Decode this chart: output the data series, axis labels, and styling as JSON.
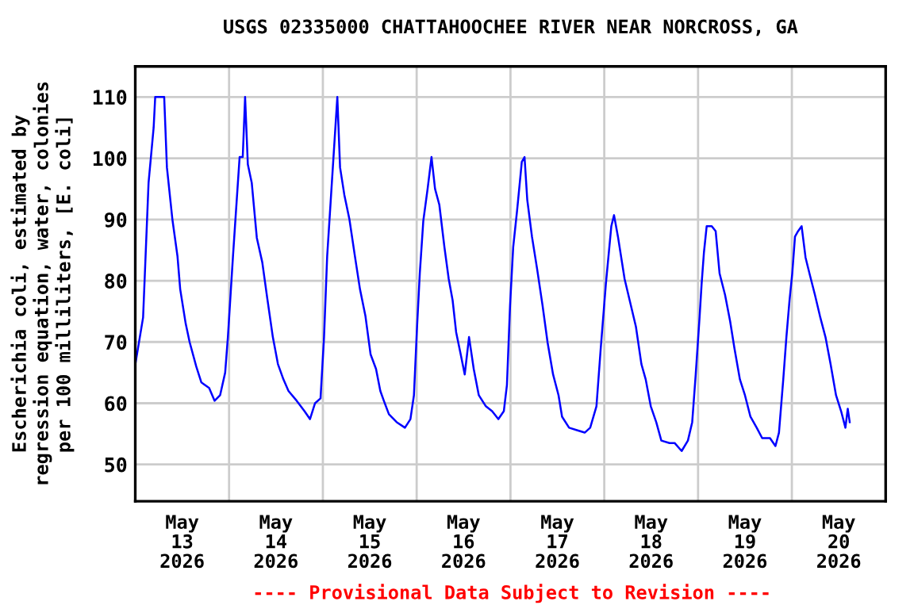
{
  "chart_data": {
    "type": "line",
    "title": "USGS 02335000 CHATTAHOOCHEE RIVER NEAR NORCROSS, GA",
    "ylabel": "Escherichia coli, estimated by\nregression equation, water, colonies\nper 100 milliliters, [E. coli]",
    "annotations": [
      "---- Provisional Data Subject to Revision ----"
    ],
    "xlim": [
      "2026-05-13T00:00",
      "2026-05-21T00:00"
    ],
    "xticks": [
      {
        "value": "2026-05-13T00:00",
        "label": null
      },
      {
        "value": "2026-05-13T12:00",
        "label": "May\n13\n2026"
      },
      {
        "value": "2026-05-14T00:00",
        "label": null
      },
      {
        "value": "2026-05-14T12:00",
        "label": "May\n14\n2026"
      },
      {
        "value": "2026-05-15T00:00",
        "label": null
      },
      {
        "value": "2026-05-15T12:00",
        "label": "May\n15\n2026"
      },
      {
        "value": "2026-05-16T00:00",
        "label": null
      },
      {
        "value": "2026-05-16T12:00",
        "label": "May\n16\n2026"
      },
      {
        "value": "2026-05-17T00:00",
        "label": null
      },
      {
        "value": "2026-05-17T12:00",
        "label": "May\n17\n2026"
      },
      {
        "value": "2026-05-18T00:00",
        "label": null
      },
      {
        "value": "2026-05-18T12:00",
        "label": "May\n18\n2026"
      },
      {
        "value": "2026-05-19T00:00",
        "label": null
      },
      {
        "value": "2026-05-19T12:00",
        "label": "May\n19\n2026"
      },
      {
        "value": "2026-05-20T00:00",
        "label": null
      },
      {
        "value": "2026-05-20T12:00",
        "label": "May\n20\n2026"
      },
      {
        "value": "2026-05-21T00:00",
        "label": null
      }
    ],
    "ylim": [
      44,
      115
    ],
    "yticks": [
      50,
      60,
      70,
      80,
      90,
      100,
      110
    ],
    "grid": true,
    "marker": "none",
    "line_style": "solid",
    "series": [
      {
        "color": "#0000ff",
        "x": [
          "2026-05-13T00:00",
          "2026-05-13T02:00",
          "2026-05-13T03:24",
          "2026-05-13T04:42",
          "2026-05-13T05:06",
          "2026-05-13T07:24",
          "2026-05-13T08:06",
          "2026-05-13T09:30",
          "2026-05-13T10:48",
          "2026-05-13T11:30",
          "2026-05-13T12:54",
          "2026-05-13T13:54",
          "2026-05-13T15:36",
          "2026-05-13T16:54",
          "2026-05-13T18:54",
          "2026-05-13T20:18",
          "2026-05-13T21:42",
          "2026-05-13T23:00",
          "2026-05-13T23:42",
          "2026-05-14T01:00",
          "2026-05-14T01:42",
          "2026-05-14T02:42",
          "2026-05-14T03:30",
          "2026-05-14T04:06",
          "2026-05-14T04:48",
          "2026-05-14T05:48",
          "2026-05-14T07:06",
          "2026-05-14T08:30",
          "2026-05-14T09:48",
          "2026-05-14T11:12",
          "2026-05-14T12:30",
          "2026-05-14T13:54",
          "2026-05-14T15:12",
          "2026-05-14T17:18",
          "2026-05-14T19:18",
          "2026-05-14T20:42",
          "2026-05-14T22:00",
          "2026-05-14T23:24",
          "2026-05-15T00:18",
          "2026-05-15T01:06",
          "2026-05-15T02:06",
          "2026-05-15T03:42",
          "2026-05-15T04:24",
          "2026-05-15T05:30",
          "2026-05-15T06:48",
          "2026-05-15T08:12",
          "2026-05-15T09:30",
          "2026-05-15T10:54",
          "2026-05-15T12:12",
          "2026-05-15T13:36",
          "2026-05-15T14:42",
          "2026-05-15T15:36",
          "2026-05-15T16:54",
          "2026-05-15T18:54",
          "2026-05-15T21:00",
          "2026-05-15T22:24",
          "2026-05-15T23:18",
          "2026-05-16T00:06",
          "2026-05-16T00:48",
          "2026-05-16T01:42",
          "2026-05-16T02:48",
          "2026-05-16T03:48",
          "2026-05-16T04:42",
          "2026-05-16T05:48",
          "2026-05-16T07:06",
          "2026-05-16T08:12",
          "2026-05-16T09:12",
          "2026-05-16T10:06",
          "2026-05-16T11:12",
          "2026-05-16T12:18",
          "2026-05-16T13:24",
          "2026-05-16T14:36",
          "2026-05-16T15:54",
          "2026-05-16T17:42",
          "2026-05-16T19:18",
          "2026-05-16T20:54",
          "2026-05-16T22:18",
          "2026-05-16T23:06",
          "2026-05-16T23:54",
          "2026-05-17T00:42",
          "2026-05-17T01:42",
          "2026-05-17T02:54",
          "2026-05-17T03:36",
          "2026-05-17T04:18",
          "2026-05-17T05:30",
          "2026-05-17T06:48",
          "2026-05-17T08:12",
          "2026-05-17T09:30",
          "2026-05-17T10:54",
          "2026-05-17T12:18",
          "2026-05-17T13:12",
          "2026-05-17T15:00",
          "2026-05-17T17:00",
          "2026-05-17T19:00",
          "2026-05-17T20:24",
          "2026-05-17T22:00",
          "2026-05-17T23:06",
          "2026-05-18T00:24",
          "2026-05-18T01:48",
          "2026-05-18T02:30",
          "2026-05-18T03:30",
          "2026-05-18T05:12",
          "2026-05-18T06:30",
          "2026-05-18T08:06",
          "2026-05-18T09:30",
          "2026-05-18T10:36",
          "2026-05-18T11:54",
          "2026-05-18T13:18",
          "2026-05-18T14:36",
          "2026-05-18T16:42",
          "2026-05-18T18:00",
          "2026-05-18T19:48",
          "2026-05-18T21:24",
          "2026-05-18T22:30",
          "2026-05-18T23:24",
          "2026-05-19T00:24",
          "2026-05-19T00:54",
          "2026-05-19T01:30",
          "2026-05-19T02:12",
          "2026-05-19T03:30",
          "2026-05-19T04:30",
          "2026-05-19T05:30",
          "2026-05-19T06:54",
          "2026-05-19T08:12",
          "2026-05-19T09:18",
          "2026-05-19T10:42",
          "2026-05-19T12:00",
          "2026-05-19T13:24",
          "2026-05-19T15:00",
          "2026-05-19T16:24",
          "2026-05-19T18:24",
          "2026-05-19T19:48",
          "2026-05-19T20:42",
          "2026-05-19T21:48",
          "2026-05-19T22:36",
          "2026-05-19T23:24",
          "2026-05-20T00:06",
          "2026-05-20T00:48",
          "2026-05-20T01:36",
          "2026-05-20T02:30",
          "2026-05-20T03:30",
          "2026-05-20T04:30",
          "2026-05-20T05:54",
          "2026-05-20T07:12",
          "2026-05-20T08:36",
          "2026-05-20T09:54",
          "2026-05-20T11:18",
          "2026-05-20T12:36",
          "2026-05-20T13:42",
          "2026-05-20T14:18",
          "2026-05-20T14:48"
        ],
        "values": [
          66.3,
          74,
          96,
          105,
          110,
          110,
          98.5,
          90,
          84,
          78.6,
          73,
          70,
          66,
          63.4,
          62.5,
          60.4,
          61.3,
          65,
          70.8,
          84,
          90.7,
          100.2,
          100.2,
          110,
          99,
          96,
          87,
          83,
          77,
          70.8,
          66.4,
          63.9,
          62,
          60.4,
          58.7,
          57.4,
          60,
          60.8,
          70.8,
          84,
          94,
          110,
          98.5,
          94,
          90,
          84,
          78.6,
          74.2,
          68,
          65.6,
          62,
          60.4,
          58.2,
          56.9,
          56,
          57.4,
          61.3,
          72.5,
          81.2,
          89.8,
          95,
          100.2,
          95,
          92.4,
          85.5,
          80.3,
          76.8,
          71.6,
          68.2,
          64.7,
          70.8,
          65.6,
          61.3,
          59.5,
          58.7,
          57.4,
          58.7,
          63,
          76,
          85.5,
          91.5,
          99.4,
          100.2,
          93.2,
          87.2,
          82,
          76,
          69.9,
          64.7,
          61.3,
          57.8,
          56,
          55.6,
          55.2,
          56,
          59.5,
          69,
          79.4,
          88.9,
          90.7,
          87.2,
          80.3,
          76.8,
          72.5,
          66.4,
          63.9,
          59.5,
          56.9,
          53.9,
          53.5,
          53.5,
          52.2,
          53.9,
          56.9,
          64.7,
          74.2,
          79.4,
          84.6,
          88.9,
          88.9,
          88.1,
          81.2,
          77.7,
          73.4,
          69,
          63.9,
          61.3,
          57.8,
          56,
          54.3,
          54.3,
          53,
          55.2,
          63.9,
          70.8,
          76.8,
          81.2,
          87.2,
          88.1,
          88.9,
          83.8,
          81.2,
          77.7,
          74.2,
          70.8,
          66.4,
          61.3,
          58.7,
          56,
          59.1,
          56.9
        ]
      }
    ]
  }
}
